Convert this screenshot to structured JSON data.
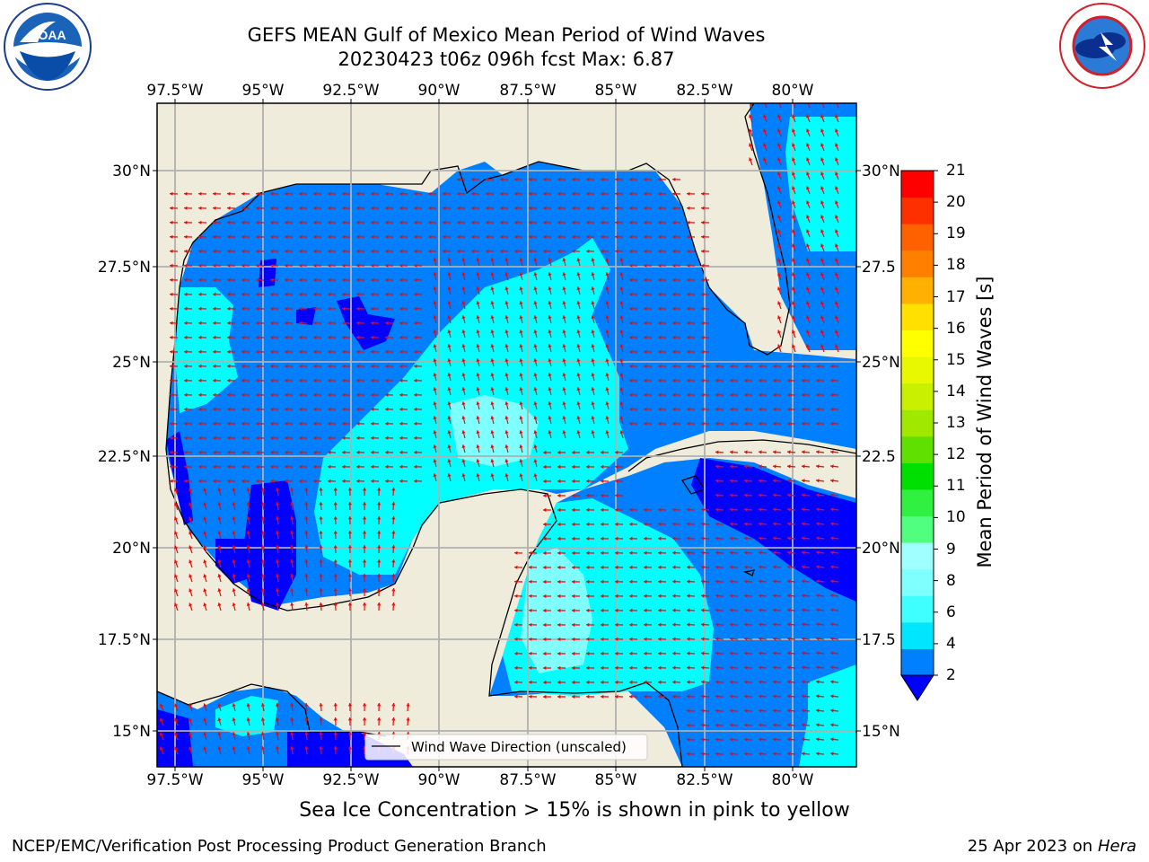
{
  "header": {
    "title_line1": "GEFS MEAN Gulf of Mexico Mean Period of Wind Waves",
    "title_line2": "20230423 t06z 096h fcst   Max: 6.87"
  },
  "logos": {
    "noaa_text": "NOAA",
    "noaa_ring": "NATIONAL OCEANIC AND ATMOSPHERIC ADMINISTRATION · U.S. DEPARTMENT OF COMMERCE",
    "nws_ring": "NATIONAL WEATHER SERVICE"
  },
  "map": {
    "lon_labels": [
      "97.5°W",
      "95°W",
      "92.5°W",
      "90°W",
      "87.5°W",
      "85°W",
      "82.5°W",
      "80°W"
    ],
    "lat_labels_left": [
      "30°N",
      "27.5°N",
      "25°N",
      "22.5°N",
      "20°N",
      "17.5°N",
      "15°N"
    ],
    "lat_labels_right": [
      "30°N",
      "27.5",
      "25°N",
      "22.5",
      "20°N",
      "17.5",
      "15°N"
    ],
    "legend": "Wind Wave Direction (unscaled)",
    "colors": {
      "land": "#efecdc",
      "arrow": "#ff0000",
      "grid": "#b0b0b0"
    }
  },
  "colorbar": {
    "label": "Mean Period of Wind Waves [s]",
    "ticks": [
      "2",
      "4",
      "6",
      "8",
      "9",
      "10",
      "11",
      "12",
      "13",
      "14",
      "15",
      "16",
      "17",
      "18",
      "19",
      "20",
      "21"
    ],
    "colors": [
      "#0080ff",
      "#00e6ff",
      "#40ffff",
      "#80ffff",
      "#a0ffff",
      "#50ff80",
      "#30f040",
      "#00e000",
      "#60e000",
      "#a0e800",
      "#c8f000",
      "#e8f800",
      "#ffff00",
      "#ffe000",
      "#ffb000",
      "#ff8000",
      "#ff6000",
      "#ff3000",
      "#ff0000"
    ],
    "extend_color": "#0000ff"
  },
  "footer": {
    "ice_note": "Sea Ice Concentration > 15% is shown in pink to yellow",
    "credit": "NCEP/EMC/Verification Post Processing Product Generation Branch",
    "date": "25 Apr 2023 on ",
    "machine": "Hera"
  }
}
